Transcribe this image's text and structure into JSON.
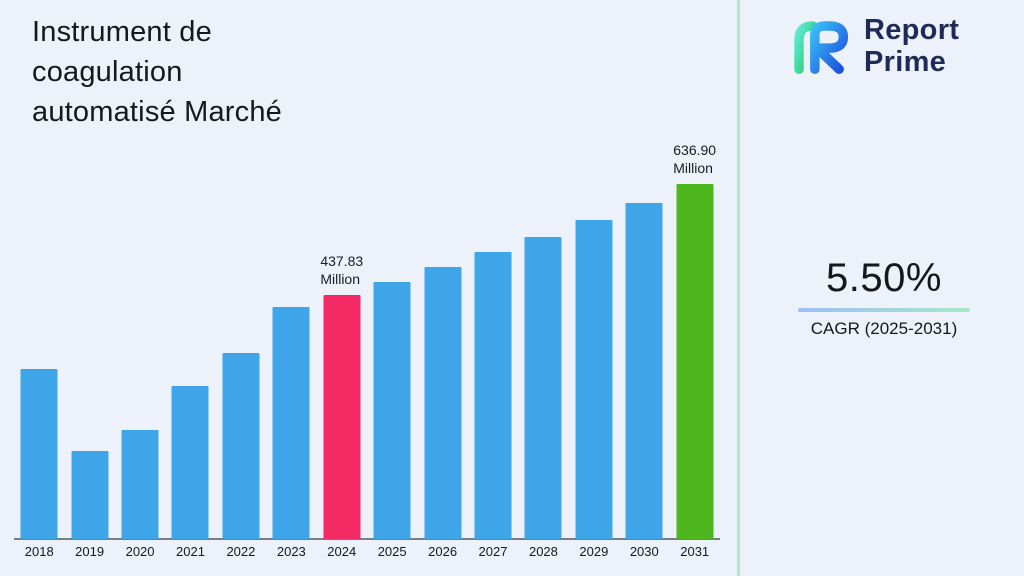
{
  "header": {
    "title_lines": [
      "Instrument de",
      "coagulation",
      "automatisé Marché"
    ]
  },
  "logo": {
    "line1": "Report",
    "line2": "Prime"
  },
  "stats": {
    "cagr_value": "5.50%",
    "cagr_label": "CAGR (2025-2031)"
  },
  "colors": {
    "background": "#EDF1FA",
    "bar_blue": "#3FA5E9",
    "bar_pink": "#F42A64",
    "bar_green": "#4EB71E",
    "divider": "#ACEAD0",
    "underline_from": "#9DBEF5",
    "underline_to": "#A8E8C9",
    "logo_navy": "#1F2A56"
  },
  "chart_data": {
    "type": "bar",
    "title": "",
    "xlabel": "",
    "ylabel": "",
    "unit": "Million",
    "categories": [
      "2018",
      "2019",
      "2020",
      "2021",
      "2022",
      "2023",
      "2024",
      "2025",
      "2026",
      "2027",
      "2028",
      "2029",
      "2030",
      "2031"
    ],
    "values": [
      305,
      158,
      195,
      274,
      334,
      417,
      437.83,
      461.9,
      487.3,
      514.1,
      542.4,
      572.2,
      603.7,
      636.9
    ],
    "ylim": [
      0,
      700
    ],
    "scale_max": 636.9,
    "grid": false,
    "legend": false,
    "bar_color": "#3FA5E9",
    "highlight_colors": {
      "2024": "#F42A64",
      "2031": "#4EB71E"
    },
    "annotations": {
      "2024": [
        "437.83",
        "Million"
      ],
      "2031": [
        "636.90",
        "Million"
      ]
    }
  }
}
